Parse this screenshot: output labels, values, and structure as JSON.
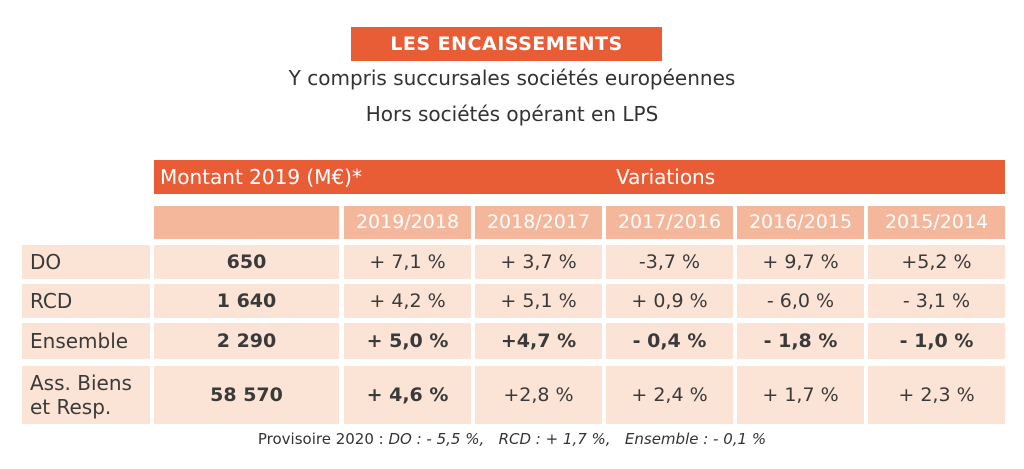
{
  "title": "LES ENCAISSEMENTS",
  "subtitle_lines": [
    "Y compris succursales sociétés européennes",
    "Hors sociétés opérant en LPS"
  ],
  "table": {
    "header_montant": "Montant 2019 (M€)*",
    "header_variations": "Variations",
    "periods": [
      "2019/2018",
      "2018/2017",
      "2017/2016",
      "2016/2015",
      "2015/2014"
    ],
    "rows": [
      {
        "label": "DO",
        "montant": "650",
        "values": [
          "+ 7,1 %",
          "+ 3,7 %",
          "-3,7 %",
          "+ 9,7 %",
          "+5,2 %"
        ]
      },
      {
        "label": "RCD",
        "montant": "1 640",
        "values": [
          "+ 4,2 %",
          "+ 5,1 %",
          "+ 0,9 %",
          "- 6,0 %",
          "- 3,1 %"
        ]
      },
      {
        "label": "Ensemble",
        "montant": "2 290",
        "values": [
          "+ 5,0 %",
          "+4,7 %",
          "- 0,4 %",
          "- 1,8 %",
          "- 1,0 %"
        ]
      },
      {
        "label_line1": "Ass. Biens",
        "label_line2": "et Resp.",
        "montant": "58 570",
        "values": [
          "+ 4,6 %",
          "+2,8 %",
          "+ 2,4 %",
          "+ 1,7 %",
          "+ 2,3 %"
        ]
      }
    ]
  },
  "footnote": {
    "prefix": "Provisoire 2020 : ",
    "do": "DO : - 5,5 %,",
    "rcd": "RCD : + 1,7 %,",
    "ensemble": "Ensemble : - 0,1 %"
  }
}
